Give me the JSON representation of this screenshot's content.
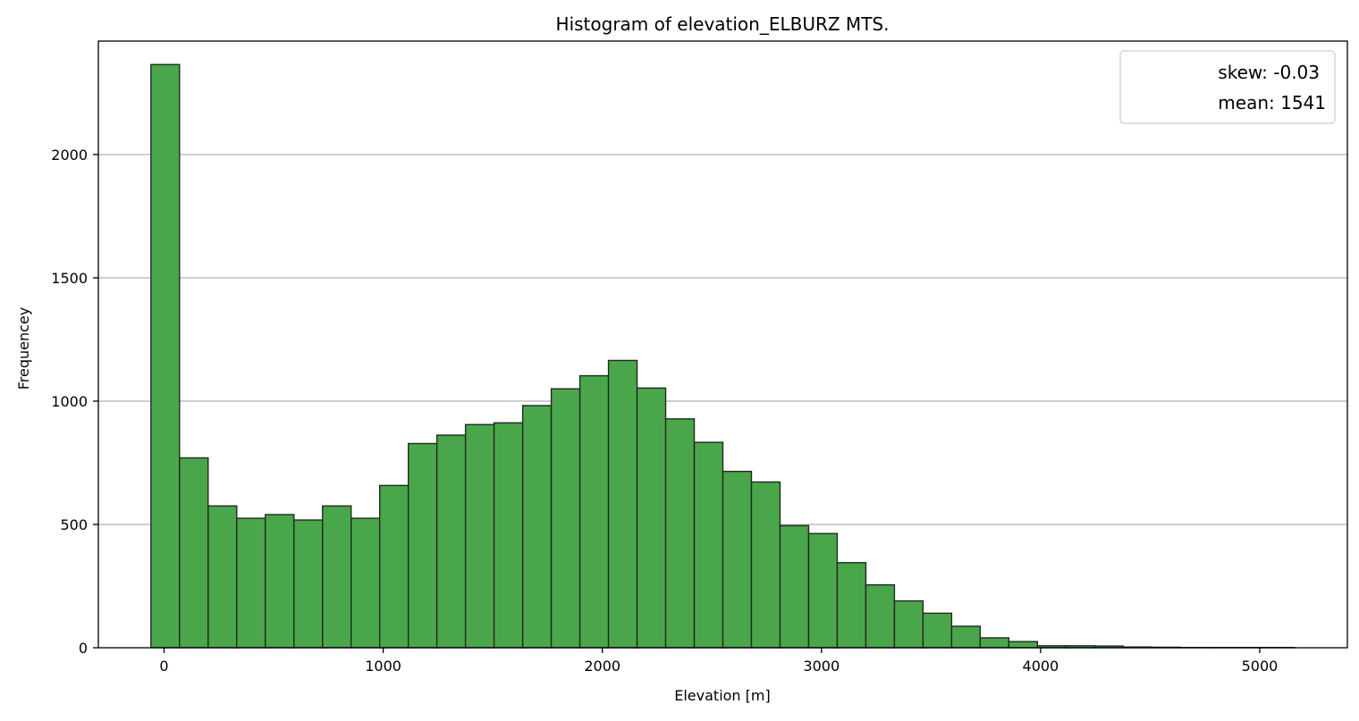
{
  "chart_data": {
    "type": "bar",
    "title": "Histogram of elevation_ELBURZ MTS.",
    "xlabel": "Elevation [m]",
    "ylabel": "Frequencey",
    "xlim": [
      -300,
      5400
    ],
    "ylim": [
      0,
      2460
    ],
    "xticks": [
      0,
      1000,
      2000,
      3000,
      4000,
      5000
    ],
    "yticks": [
      0,
      500,
      1000,
      1500,
      2000
    ],
    "grid": "y",
    "legend_position": "top-right",
    "legend": [
      "skew: -0.03",
      "mean: 1541"
    ],
    "colors": {
      "bar_fill": "#4aa64a",
      "bar_edge": "#1f2b1f",
      "grid": "#b0b0b0"
    },
    "bin_start": -60,
    "bin_width": 130.5,
    "values": [
      2365,
      770,
      575,
      525,
      540,
      518,
      575,
      525,
      658,
      828,
      862,
      905,
      912,
      982,
      1050,
      1103,
      1165,
      1053,
      928,
      833,
      715,
      672,
      495,
      463,
      345,
      255,
      190,
      140,
      87,
      40,
      25,
      8,
      8,
      7,
      3,
      2,
      1,
      1,
      1,
      1
    ]
  }
}
